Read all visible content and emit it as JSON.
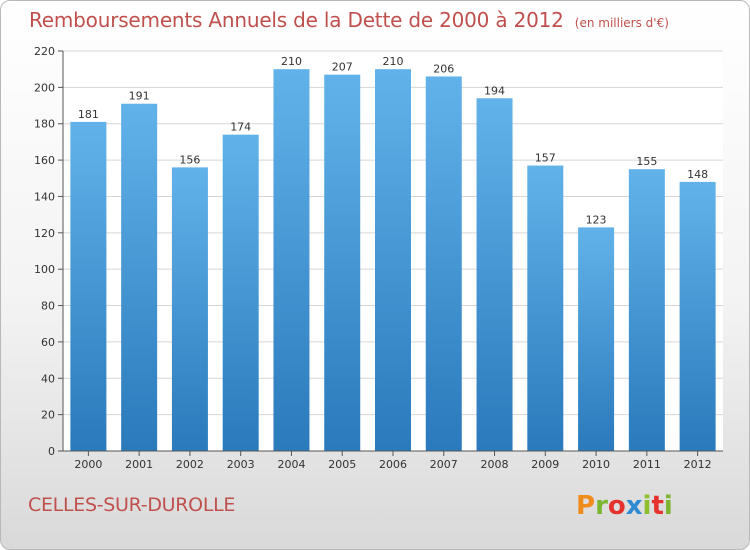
{
  "header": {
    "title": "Remboursements Annuels de la Dette de 2000 à 2012",
    "unit": "(en milliers d'€)"
  },
  "footer": {
    "commune": "CELLES-SUR-DUROLLE",
    "logo_text": "Proxiti"
  },
  "colors": {
    "title": "#c0504d",
    "bar_top": "#62b2ea",
    "bar_bottom": "#2a7abc"
  },
  "chart_data": {
    "type": "bar",
    "title": "Remboursements Annuels de la Dette de 2000 à 2012",
    "subtitle": "(en milliers d'€)",
    "xlabel": "",
    "ylabel": "",
    "categories": [
      "2000",
      "2001",
      "2002",
      "2003",
      "2004",
      "2005",
      "2006",
      "2007",
      "2008",
      "2009",
      "2010",
      "2011",
      "2012"
    ],
    "values": [
      181,
      191,
      156,
      174,
      210,
      207,
      210,
      206,
      194,
      157,
      123,
      155,
      148
    ],
    "ylim": [
      0,
      220
    ],
    "yticks": [
      0,
      20,
      40,
      60,
      80,
      100,
      120,
      140,
      160,
      180,
      200,
      220
    ],
    "grid": "horizontal"
  }
}
